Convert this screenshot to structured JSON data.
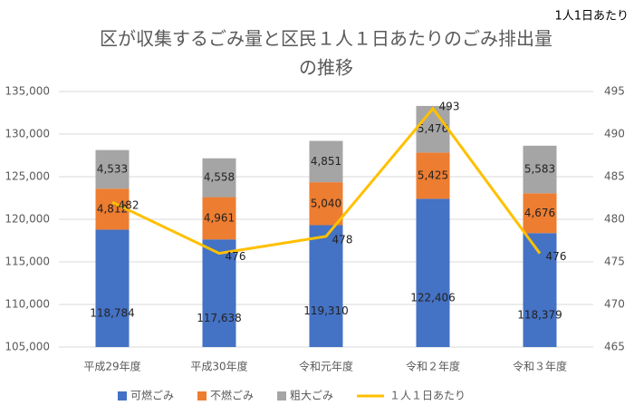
{
  "chart_data": {
    "type": "bar",
    "title": [
      "区が収集するごみ量と区民１人１日あたりのごみ排出量",
      "の推移"
    ],
    "y2_label": "1人1日あたり",
    "categories": [
      "平成29年度",
      "平成30年度",
      "令和元年度",
      "令和２年度",
      "令和３年度"
    ],
    "stacked": true,
    "grid": true,
    "legend": "bottom",
    "series": [
      {
        "name": "可燃ごみ",
        "color": "#4472c4",
        "values": [
          118784,
          117638,
          119310,
          122406,
          118379
        ],
        "value_labels": [
          "118,784",
          "117,638",
          "119,310",
          "122,406",
          "118,379"
        ]
      },
      {
        "name": "不燃ごみ",
        "color": "#ed7d31",
        "values": [
          4812,
          4961,
          5040,
          5425,
          4676
        ],
        "value_labels": [
          "4,812",
          "4,961",
          "5,040",
          "5,425",
          "4,676"
        ]
      },
      {
        "name": "粗大ごみ",
        "color": "#a5a5a5",
        "values": [
          4533,
          4558,
          4851,
          5476,
          5583
        ],
        "value_labels": [
          "4,533",
          "4,558",
          "4,851",
          "5,476",
          "5,583"
        ]
      },
      {
        "name": "１人１日あたり",
        "color": "#ffc000",
        "type": "line",
        "axis": "y2",
        "values": [
          482,
          476,
          478,
          493,
          476
        ]
      }
    ],
    "ylim": [
      105000,
      135000
    ],
    "yticks": [
      {
        "value": 105000,
        "label": "105,000"
      },
      {
        "value": 110000,
        "label": "110,000"
      },
      {
        "value": 115000,
        "label": "115,000"
      },
      {
        "value": 120000,
        "label": "120,000"
      },
      {
        "value": 125000,
        "label": "125,000"
      },
      {
        "value": 130000,
        "label": "130,000"
      },
      {
        "value": 135000,
        "label": "135,000"
      }
    ],
    "y2lim": [
      465,
      495
    ],
    "y2ticks": [
      465,
      470,
      475,
      480,
      485,
      490,
      495
    ]
  }
}
